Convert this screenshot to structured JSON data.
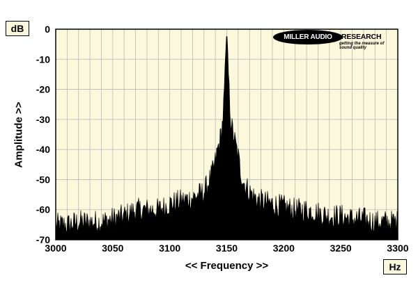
{
  "chart_data": {
    "type": "area",
    "title": "",
    "xlabel": "<< Frequency >>",
    "ylabel": "Amplitude >>",
    "x_unit": "Hz",
    "y_unit": "dB",
    "xlim": [
      3000,
      3300
    ],
    "ylim": [
      -70,
      0
    ],
    "x_ticks": [
      3000,
      3050,
      3100,
      3150,
      3200,
      3250,
      3300
    ],
    "y_ticks": [
      0,
      -10,
      -20,
      -30,
      -40,
      -50,
      -60,
      -70
    ],
    "x_tick_labels": [
      "3000",
      "3050",
      "3100",
      "3150",
      "3200",
      "3250",
      "3300"
    ],
    "y_tick_labels": [
      "0",
      "-10",
      "-20",
      "-30",
      "-40",
      "-50",
      "-60",
      "-70"
    ],
    "grid": true,
    "series": [
      {
        "x": [
          3000,
          3010,
          3020,
          3030,
          3040,
          3050,
          3060,
          3070,
          3080,
          3090,
          3100,
          3110,
          3120,
          3125,
          3130,
          3135,
          3138,
          3140,
          3142,
          3144,
          3146,
          3147,
          3148,
          3149,
          3150,
          3151,
          3152,
          3153,
          3154,
          3156,
          3158,
          3160,
          3162,
          3165,
          3170,
          3175,
          3180,
          3190,
          3200,
          3210,
          3220,
          3230,
          3240,
          3250,
          3260,
          3270,
          3280,
          3290,
          3300
        ],
        "y": [
          -63,
          -63,
          -62,
          -62,
          -62,
          -61,
          -60,
          -58,
          -58,
          -58,
          -56,
          -55,
          -54,
          -53,
          -52,
          -48,
          -45,
          -42,
          -38,
          -35,
          -30,
          -25,
          -18,
          -8,
          0,
          -8,
          -18,
          -25,
          -30,
          -33,
          -37,
          -40,
          -45,
          -49,
          -52,
          -54,
          -55,
          -56,
          -57,
          -58,
          -58,
          -59,
          -60,
          -60,
          -61,
          -61,
          -62,
          -62,
          -62
        ]
      }
    ]
  },
  "logo": {
    "name_part1": "MILLER AUDIO",
    "name_part2": "RESEARCH",
    "tagline": "getting the measure of sound quality"
  }
}
